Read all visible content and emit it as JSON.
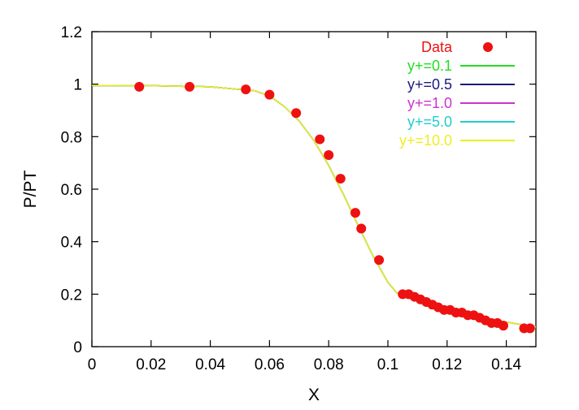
{
  "chart_data": {
    "type": "line",
    "title": "",
    "xlabel": "X",
    "ylabel": "P/PT",
    "xlim": [
      0,
      0.15
    ],
    "ylim": [
      0,
      1.2
    ],
    "xticks": [
      "0",
      "0.02",
      "0.04",
      "0.06",
      "0.08",
      "0.1",
      "0.12",
      "0.14"
    ],
    "yticks": [
      "0",
      "0.2",
      "0.4",
      "0.6",
      "0.8",
      "1",
      "1.2"
    ],
    "grid": false,
    "legend_position": "top-right",
    "scatter": {
      "name": "Data",
      "color": "#ee1111",
      "x": [
        0.016,
        0.033,
        0.052,
        0.06,
        0.069,
        0.077,
        0.08,
        0.084,
        0.089,
        0.091,
        0.097,
        0.105,
        0.107,
        0.109,
        0.111,
        0.113,
        0.115,
        0.117,
        0.119,
        0.121,
        0.123,
        0.125,
        0.127,
        0.129,
        0.131,
        0.133,
        0.135,
        0.137,
        0.139,
        0.146,
        0.148
      ],
      "y": [
        0.99,
        0.99,
        0.98,
        0.96,
        0.89,
        0.79,
        0.73,
        0.64,
        0.51,
        0.45,
        0.33,
        0.2,
        0.2,
        0.19,
        0.18,
        0.17,
        0.16,
        0.15,
        0.14,
        0.14,
        0.13,
        0.13,
        0.12,
        0.12,
        0.11,
        0.1,
        0.09,
        0.09,
        0.08,
        0.07,
        0.07
      ]
    },
    "series": [
      {
        "name": "y+=0.1",
        "color": "#22dd22",
        "x": [
          0,
          0.02,
          0.04,
          0.055,
          0.06,
          0.065,
          0.07,
          0.075,
          0.08,
          0.085,
          0.09,
          0.095,
          0.1,
          0.103,
          0.105,
          0.11,
          0.115,
          0.12,
          0.125,
          0.13,
          0.135,
          0.14,
          0.145,
          0.15
        ],
        "y": [
          0.995,
          0.994,
          0.99,
          0.975,
          0.955,
          0.915,
          0.86,
          0.785,
          0.69,
          0.58,
          0.46,
          0.345,
          0.245,
          0.205,
          0.195,
          0.175,
          0.158,
          0.142,
          0.128,
          0.116,
          0.104,
          0.094,
          0.084,
          0.075
        ]
      },
      {
        "name": "y+=0.5",
        "color": "#1a1a80",
        "x": [
          0,
          0.02,
          0.04,
          0.055,
          0.06,
          0.065,
          0.07,
          0.075,
          0.08,
          0.085,
          0.09,
          0.095,
          0.1,
          0.103,
          0.105,
          0.11,
          0.115,
          0.12,
          0.125,
          0.13,
          0.135,
          0.14,
          0.145,
          0.15
        ],
        "y": [
          0.995,
          0.994,
          0.99,
          0.975,
          0.955,
          0.915,
          0.86,
          0.785,
          0.69,
          0.58,
          0.46,
          0.345,
          0.245,
          0.205,
          0.195,
          0.175,
          0.158,
          0.142,
          0.128,
          0.116,
          0.104,
          0.094,
          0.084,
          0.075
        ]
      },
      {
        "name": "y+=1.0",
        "color": "#cc33cc",
        "x": [
          0,
          0.02,
          0.04,
          0.055,
          0.06,
          0.065,
          0.07,
          0.075,
          0.08,
          0.085,
          0.09,
          0.095,
          0.1,
          0.103,
          0.105,
          0.11,
          0.115,
          0.12,
          0.125,
          0.13,
          0.135,
          0.14,
          0.145,
          0.15
        ],
        "y": [
          0.995,
          0.994,
          0.99,
          0.975,
          0.955,
          0.915,
          0.86,
          0.785,
          0.69,
          0.58,
          0.46,
          0.345,
          0.245,
          0.205,
          0.195,
          0.175,
          0.158,
          0.142,
          0.128,
          0.116,
          0.104,
          0.094,
          0.084,
          0.075
        ]
      },
      {
        "name": "y+=5.0",
        "color": "#22cccc",
        "x": [
          0,
          0.02,
          0.04,
          0.055,
          0.06,
          0.065,
          0.07,
          0.075,
          0.08,
          0.085,
          0.09,
          0.095,
          0.1,
          0.103,
          0.105,
          0.11,
          0.115,
          0.12,
          0.125,
          0.13,
          0.135,
          0.14,
          0.145,
          0.15
        ],
        "y": [
          0.995,
          0.994,
          0.99,
          0.975,
          0.955,
          0.915,
          0.86,
          0.785,
          0.69,
          0.58,
          0.46,
          0.345,
          0.245,
          0.205,
          0.195,
          0.175,
          0.158,
          0.142,
          0.128,
          0.116,
          0.104,
          0.094,
          0.084,
          0.075
        ]
      },
      {
        "name": "y+=10.0",
        "color": "#eeee22",
        "x": [
          0,
          0.02,
          0.04,
          0.055,
          0.06,
          0.065,
          0.07,
          0.075,
          0.08,
          0.085,
          0.09,
          0.095,
          0.1,
          0.103,
          0.105,
          0.11,
          0.115,
          0.12,
          0.125,
          0.13,
          0.135,
          0.14,
          0.145,
          0.15
        ],
        "y": [
          0.995,
          0.994,
          0.99,
          0.975,
          0.955,
          0.915,
          0.86,
          0.785,
          0.69,
          0.58,
          0.46,
          0.345,
          0.245,
          0.205,
          0.195,
          0.175,
          0.158,
          0.142,
          0.128,
          0.116,
          0.104,
          0.094,
          0.084,
          0.075
        ]
      }
    ]
  }
}
